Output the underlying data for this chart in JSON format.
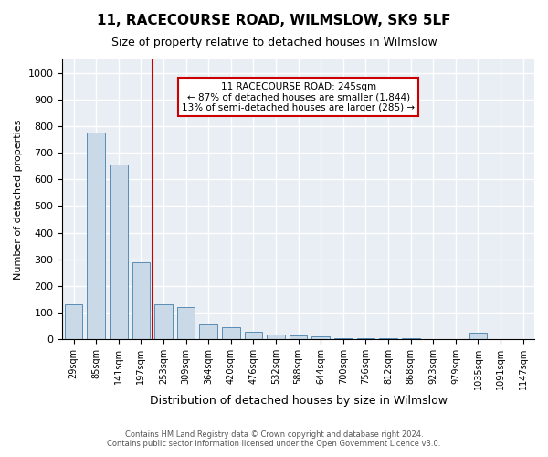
{
  "title": "11, RACECOURSE ROAD, WILMSLOW, SK9 5LF",
  "subtitle": "Size of property relative to detached houses in Wilmslow",
  "xlabel": "Distribution of detached houses by size in Wilmslow",
  "ylabel": "Number of detached properties",
  "bar_color": "#c9d9e8",
  "bar_edge_color": "#5a8db5",
  "background_color": "#e8eef4",
  "grid_color": "#ffffff",
  "vline_color": "#cc0000",
  "vline_x": 4,
  "annotation_text": "11 RACECOURSE ROAD: 245sqm\n← 87% of detached houses are smaller (1,844)\n13% of semi-detached houses are larger (285) →",
  "annotation_box_color": "#cc0000",
  "footer_line1": "Contains HM Land Registry data © Crown copyright and database right 2024.",
  "footer_line2": "Contains public sector information licensed under the Open Government Licence v3.0.",
  "categories": [
    "29sqm",
    "85sqm",
    "141sqm",
    "197sqm",
    "253sqm",
    "309sqm",
    "364sqm",
    "420sqm",
    "476sqm",
    "532sqm",
    "588sqm",
    "644sqm",
    "700sqm",
    "756sqm",
    "812sqm",
    "868sqm",
    "923sqm",
    "979sqm",
    "1035sqm",
    "1091sqm",
    "1147sqm"
  ],
  "values": [
    130,
    775,
    655,
    290,
    130,
    120,
    55,
    45,
    30,
    20,
    15,
    10,
    5,
    5,
    5,
    5,
    0,
    0,
    25,
    0,
    0
  ],
  "ylim": [
    0,
    1050
  ],
  "yticks": [
    0,
    100,
    200,
    300,
    400,
    500,
    600,
    700,
    800,
    900,
    1000
  ]
}
